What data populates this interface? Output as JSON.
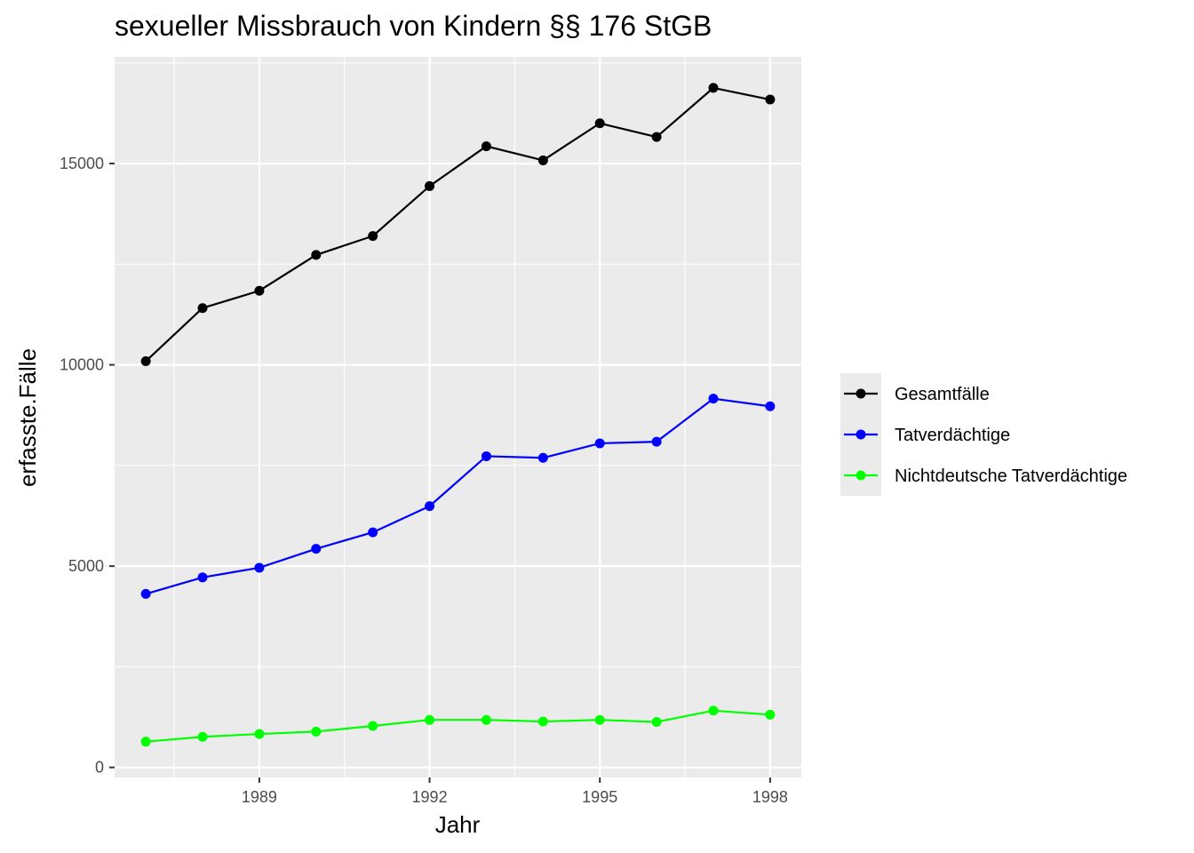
{
  "chart_data": {
    "type": "line",
    "title": "sexueller Missbrauch von Kindern §§ 176 StGB",
    "xlabel": "Jahr",
    "ylabel": "erfasste.Fälle",
    "x": [
      1987,
      1988,
      1989,
      1990,
      1991,
      1992,
      1993,
      1994,
      1995,
      1996,
      1997,
      1998
    ],
    "xlim": [
      1986.45,
      1998.55
    ],
    "ylim": [
      -250,
      17650
    ],
    "x_ticks": [
      1989,
      1992,
      1995,
      1998
    ],
    "x_ticks_labels": [
      "1989",
      "1992",
      "1995",
      "1998"
    ],
    "x_minor": [
      1987.5,
      1990.5,
      1993.5,
      1996.5
    ],
    "y_ticks": [
      0,
      5000,
      10000,
      15000
    ],
    "y_ticks_labels": [
      "0",
      "5000",
      "10000",
      "15000"
    ],
    "y_minor": [
      2500,
      7500,
      12500,
      17500
    ],
    "grid": true,
    "legend_position": "right",
    "series": [
      {
        "name": "Gesamtfälle",
        "color": "#000000",
        "values": [
          10090,
          11410,
          11840,
          12730,
          13200,
          14440,
          15430,
          15080,
          16000,
          15660,
          16880,
          16590
        ]
      },
      {
        "name": "Tatverdächtige",
        "color": "#0000ff",
        "values": [
          4310,
          4720,
          4960,
          5430,
          5840,
          6490,
          7730,
          7690,
          8050,
          8090,
          9160,
          8970
        ]
      },
      {
        "name": "Nichtdeutsche Tatverdächtige",
        "color": "#00ff00",
        "values": [
          640,
          760,
          830,
          890,
          1030,
          1180,
          1180,
          1140,
          1180,
          1130,
          1410,
          1310
        ]
      }
    ]
  }
}
